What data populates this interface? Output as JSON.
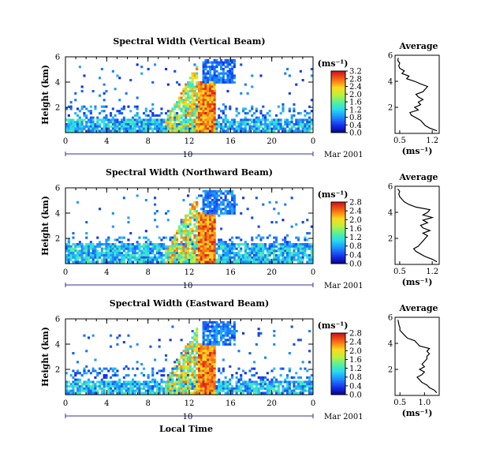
{
  "chart_data": [
    {
      "type": "heatmap",
      "title": "Spectral Width (Vertical Beam)",
      "ylabel": "Height (km)",
      "xlim": [
        0,
        24
      ],
      "ylim": [
        0,
        6
      ],
      "x_ticks": [
        "0",
        "4",
        "8",
        "12",
        "16",
        "20",
        "0"
      ],
      "y_ticks": [
        "2",
        "4",
        "6"
      ],
      "colorbar_unit": "(ms⁻¹)",
      "colorbar_ticks": [
        "0.0",
        "0.4",
        "0.8",
        "1.2",
        "1.6",
        "2.0",
        "2.4",
        "2.8",
        "3.2"
      ],
      "colorbar_range": [
        0,
        3.2
      ],
      "day_label": "10",
      "date_label": "Mar 2001",
      "average_profile": {
        "title": "Average",
        "xlabel": "(ms⁻¹)",
        "x_ticks": [
          "0.5",
          "1.2"
        ],
        "y_ticks": [
          "2",
          "4",
          "6"
        ],
        "xlim": [
          0.4,
          1.35
        ],
        "height": [
          0.2,
          0.4,
          0.6,
          0.8,
          1.0,
          1.2,
          1.4,
          1.6,
          1.8,
          2.0,
          2.2,
          2.4,
          2.6,
          2.8,
          3.0,
          3.2,
          3.4,
          3.6,
          3.8,
          4.0,
          4.2,
          4.4,
          4.6,
          4.8,
          5.0,
          5.2,
          5.4,
          5.6,
          5.8
        ],
        "values": [
          1.3,
          1.15,
          1.05,
          1.0,
          0.95,
          0.85,
          0.75,
          0.72,
          0.9,
          0.82,
          0.95,
          0.9,
          1.0,
          0.9,
          0.85,
          1.0,
          1.05,
          1.1,
          0.95,
          0.82,
          0.65,
          0.7,
          0.55,
          0.6,
          0.5,
          0.48,
          0.5,
          0.46,
          0.47
        ]
      }
    },
    {
      "type": "heatmap",
      "title": "Spectral Width (Northward Beam)",
      "ylabel": "Height (km)",
      "xlim": [
        0,
        24
      ],
      "ylim": [
        0,
        6
      ],
      "x_ticks": [
        "0",
        "4",
        "8",
        "12",
        "16",
        "20",
        "0"
      ],
      "y_ticks": [
        "2",
        "4",
        "6"
      ],
      "colorbar_unit": "(ms⁻¹)",
      "colorbar_ticks": [
        "0.0",
        "0.4",
        "0.8",
        "1.2",
        "1.6",
        "2.0",
        "2.4",
        "2.8"
      ],
      "colorbar_range": [
        0,
        2.8
      ],
      "day_label": "10",
      "date_label": "Mar 2001",
      "average_profile": {
        "title": "Average",
        "xlabel": "(ms⁻¹)",
        "x_ticks": [
          "0.5",
          "1.2"
        ],
        "y_ticks": [
          "2",
          "4",
          "6"
        ],
        "xlim": [
          0.4,
          1.35
        ],
        "height": [
          0.2,
          0.4,
          0.6,
          0.8,
          1.0,
          1.2,
          1.4,
          1.6,
          1.8,
          2.0,
          2.2,
          2.4,
          2.6,
          2.8,
          3.0,
          3.2,
          3.4,
          3.6,
          3.8,
          4.0,
          4.2,
          4.4,
          4.6,
          4.8,
          5.0,
          5.2,
          5.4,
          5.6,
          5.8
        ],
        "values": [
          1.3,
          1.2,
          1.05,
          0.95,
          0.85,
          0.8,
          0.9,
          0.95,
          1.0,
          1.05,
          1.1,
          1.0,
          1.15,
          1.0,
          0.95,
          1.1,
          1.0,
          1.2,
          1.0,
          1.1,
          1.15,
          0.85,
          0.7,
          0.6,
          0.55,
          0.5,
          0.48,
          0.5,
          0.46
        ]
      }
    },
    {
      "type": "heatmap",
      "title": "Spectral Width (Eastward Beam)",
      "ylabel": "Height (km)",
      "xlabel": "Local Time",
      "xlim": [
        0,
        24
      ],
      "ylim": [
        0,
        6
      ],
      "x_ticks": [
        "0",
        "4",
        "8",
        "12",
        "16",
        "20",
        "0"
      ],
      "y_ticks": [
        "2",
        "4",
        "6"
      ],
      "colorbar_unit": "(ms⁻¹)",
      "colorbar_ticks": [
        "0.0",
        "0.4",
        "0.8",
        "1.2",
        "1.6",
        "2.0",
        "2.4",
        "2.8"
      ],
      "colorbar_range": [
        0,
        2.8
      ],
      "day_label": "10",
      "date_label": "Mar 2001",
      "average_profile": {
        "title": "Average",
        "xlabel": "(ms⁻¹)",
        "x_ticks": [
          "0.5",
          "1.0"
        ],
        "y_ticks": [
          "2",
          "4",
          "6"
        ],
        "xlim": [
          0.4,
          1.3
        ],
        "height": [
          0.2,
          0.4,
          0.6,
          0.8,
          1.0,
          1.2,
          1.4,
          1.6,
          1.8,
          2.0,
          2.2,
          2.4,
          2.6,
          2.8,
          3.0,
          3.2,
          3.4,
          3.6,
          3.8,
          4.0,
          4.2,
          4.4,
          4.6,
          4.8,
          5.0,
          5.2,
          5.4,
          5.6,
          5.8
        ],
        "values": [
          1.25,
          1.2,
          1.1,
          1.05,
          0.95,
          0.9,
          0.85,
          0.95,
          1.0,
          0.9,
          1.0,
          0.95,
          1.0,
          1.05,
          1.05,
          1.1,
          1.05,
          1.1,
          0.9,
          0.85,
          0.8,
          0.65,
          0.6,
          0.55,
          0.5,
          0.5,
          0.48,
          0.47,
          0.46
        ]
      }
    }
  ]
}
